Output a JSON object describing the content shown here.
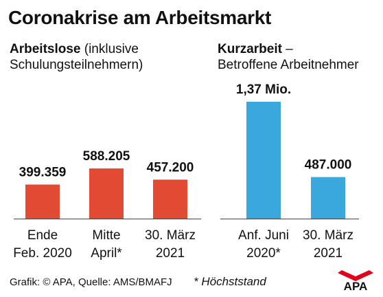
{
  "title": "Coronakrise am Arbeitsmarkt",
  "subtitle_left": {
    "bold": "Arbeitslose",
    "rest_line1": " (inklusive",
    "line2": "Schulungsteilnehmern)"
  },
  "subtitle_right": {
    "bold": "Kurzarbeit",
    "rest_line1": " –",
    "line2": "Betroffene Arbeitnehmer"
  },
  "footer": {
    "source": "Grafik: © APA, Quelle: AMS/BMAFJ",
    "footnote": "* Höchststand"
  },
  "logo": {
    "text": "APA"
  },
  "colors": {
    "red": "#e34a33",
    "blue": "#3aa8dc",
    "text": "#111111",
    "axis": "#444444"
  },
  "chart_data": [
    {
      "type": "bar",
      "series_color": "#e34a33",
      "categories": [
        [
          "Ende",
          "Feb. 2020"
        ],
        [
          "Mitte",
          "April*"
        ],
        [
          "30. März",
          "2021"
        ]
      ],
      "values": [
        399359,
        588205,
        457200
      ],
      "value_labels": [
        "399.359",
        "588.205",
        "457.200"
      ]
    },
    {
      "type": "bar",
      "series_color": "#3aa8dc",
      "categories": [
        [
          "Anf. Juni",
          "2020*"
        ],
        [
          "30. März",
          "2021"
        ]
      ],
      "values": [
        1370000,
        487000
      ],
      "value_labels": [
        "1,37 Mio.",
        "487.000"
      ]
    }
  ]
}
